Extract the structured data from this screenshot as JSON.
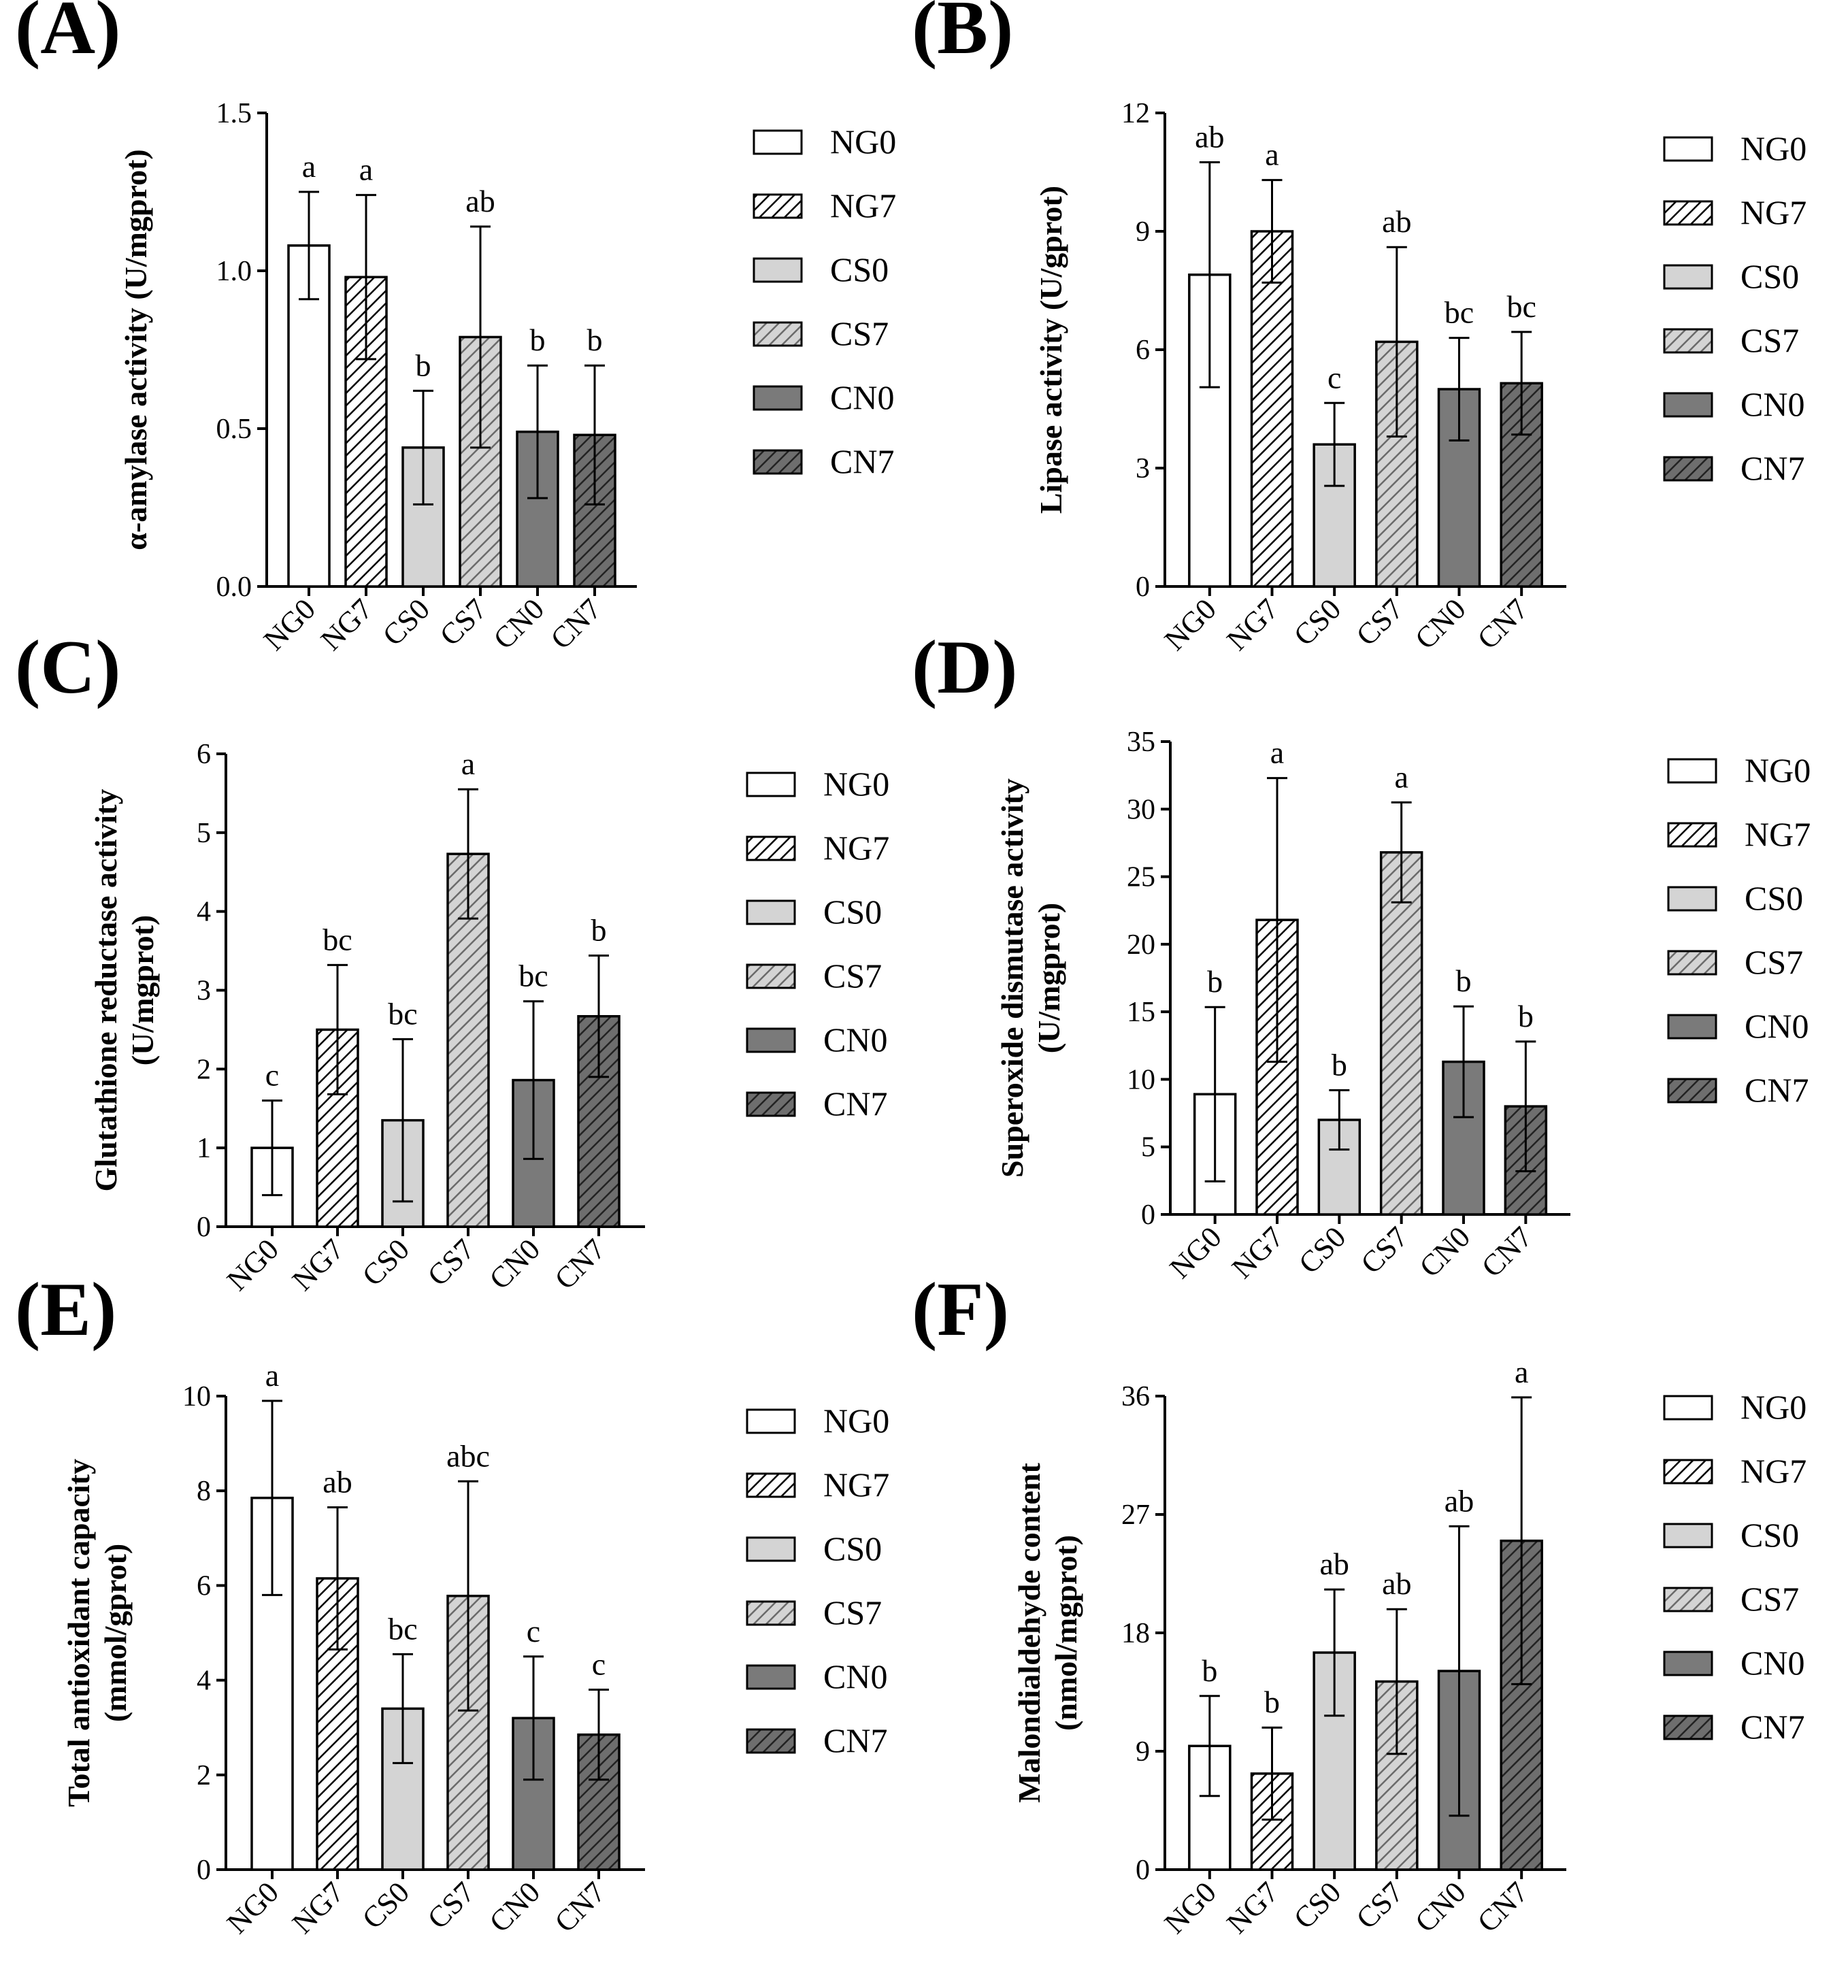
{
  "categories": [
    "NG0",
    "NG7",
    "CS0",
    "CS7",
    "CN0",
    "CN7"
  ],
  "legend_entries": [
    "NG0",
    "NG7",
    "CS0",
    "CS7",
    "CN0",
    "CN7"
  ],
  "series_styles": [
    {
      "name": "NG0",
      "fill": "#ffffff",
      "hatch": false
    },
    {
      "name": "NG7",
      "fill": "#ffffff",
      "hatch": true,
      "hatch_color": "#000000"
    },
    {
      "name": "CS0",
      "fill": "#d4d4d4",
      "hatch": false
    },
    {
      "name": "CS7",
      "fill": "#d4d4d4",
      "hatch": true,
      "hatch_color": "#6a6a6a"
    },
    {
      "name": "CN0",
      "fill": "#7a7a7a",
      "hatch": false
    },
    {
      "name": "CN7",
      "fill": "#6e6e6e",
      "hatch": true,
      "hatch_color": "#222222"
    }
  ],
  "chart_data": [
    {
      "panel": "(A)",
      "type": "bar",
      "ylabel": [
        "α-amylase activity (U/mgprot)"
      ],
      "ylim": [
        0,
        1.5
      ],
      "yticks": [
        "0.0",
        "0.5",
        "1.0",
        "1.5"
      ],
      "categories": [
        "NG0",
        "NG7",
        "CS0",
        "CS7",
        "CN0",
        "CN7"
      ],
      "values": [
        1.08,
        0.98,
        0.44,
        0.79,
        0.49,
        0.48
      ],
      "errors": [
        0.17,
        0.26,
        0.18,
        0.35,
        0.21,
        0.22
      ],
      "letters": [
        "a",
        "a",
        "b",
        "ab",
        "b",
        "b"
      ]
    },
    {
      "panel": "(B)",
      "type": "bar",
      "ylabel": [
        "Lipase activity (U/gprot)"
      ],
      "ylim": [
        0,
        12
      ],
      "yticks": [
        "0",
        "3",
        "6",
        "9",
        "12"
      ],
      "categories": [
        "NG0",
        "NG7",
        "CS0",
        "CS7",
        "CN0",
        "CN7"
      ],
      "values": [
        7.9,
        9.0,
        3.6,
        6.2,
        5.0,
        5.15
      ],
      "errors": [
        2.85,
        1.3,
        1.05,
        2.4,
        1.3,
        1.3
      ],
      "letters": [
        "ab",
        "a",
        "c",
        "ab",
        "bc",
        "bc"
      ]
    },
    {
      "panel": "(C)",
      "type": "bar",
      "ylabel": [
        "Glutathione reductase activity",
        "(U/mgprot)"
      ],
      "ylim": [
        0,
        6
      ],
      "yticks": [
        "0",
        "1",
        "2",
        "3",
        "4",
        "5",
        "6"
      ],
      "categories": [
        "NG0",
        "NG7",
        "CS0",
        "CS7",
        "CN0",
        "CN7"
      ],
      "values": [
        1.0,
        2.5,
        1.35,
        4.73,
        1.86,
        2.67
      ],
      "errors": [
        0.6,
        0.82,
        1.03,
        0.82,
        1.0,
        0.77
      ],
      "letters": [
        "c",
        "bc",
        "bc",
        "a",
        "bc",
        "b"
      ]
    },
    {
      "panel": "(D)",
      "type": "bar",
      "ylabel": [
        "Superoxide dismutase activity",
        "(U/mgprot)"
      ],
      "ylim": [
        0,
        35
      ],
      "yticks": [
        "0",
        "5",
        "10",
        "15",
        "20",
        "25",
        "30",
        "35"
      ],
      "categories": [
        "NG0",
        "NG7",
        "CS0",
        "CS7",
        "CN0",
        "CN7"
      ],
      "values": [
        8.9,
        21.8,
        7.0,
        26.8,
        11.3,
        8.0
      ],
      "errors": [
        6.45,
        10.5,
        2.2,
        3.7,
        4.1,
        4.8
      ],
      "letters": [
        "b",
        "a",
        "b",
        "a",
        "b",
        "b"
      ]
    },
    {
      "panel": "(E)",
      "type": "bar",
      "ylabel": [
        "Total antioxidant capacity",
        "(mmol/gprot)"
      ],
      "ylim": [
        0,
        10
      ],
      "yticks": [
        "0",
        "2",
        "4",
        "6",
        "8",
        "10"
      ],
      "categories": [
        "NG0",
        "NG7",
        "CS0",
        "CS7",
        "CN0",
        "CN7"
      ],
      "values": [
        7.85,
        6.15,
        3.4,
        5.78,
        3.2,
        2.85
      ],
      "errors": [
        2.05,
        1.5,
        1.15,
        2.42,
        1.3,
        0.95
      ],
      "letters": [
        "a",
        "ab",
        "bc",
        "abc",
        "c",
        "c"
      ]
    },
    {
      "panel": "(F)",
      "type": "bar",
      "ylabel": [
        "Malondialdehyde content",
        "(nmol/mgprot)"
      ],
      "ylim": [
        0,
        36
      ],
      "yticks": [
        "0",
        "9",
        "18",
        "27",
        "36"
      ],
      "categories": [
        "NG0",
        "NG7",
        "CS0",
        "CS7",
        "CN0",
        "CN7"
      ],
      "values": [
        9.4,
        7.3,
        16.5,
        14.3,
        15.1,
        25.0
      ],
      "errors": [
        3.8,
        3.5,
        4.8,
        5.5,
        11.0,
        10.9
      ],
      "letters": [
        "b",
        "b",
        "ab",
        "ab",
        "ab",
        "a"
      ]
    }
  ]
}
